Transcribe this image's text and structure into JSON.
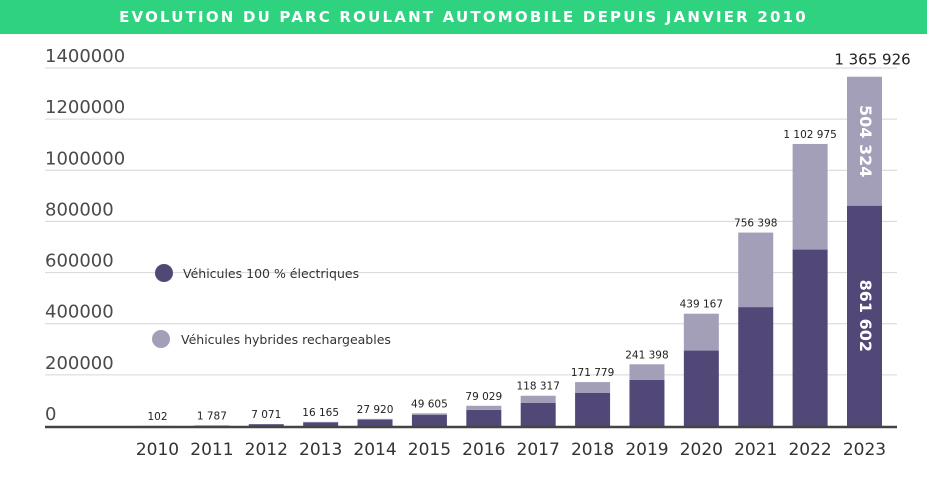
{
  "chart_data": {
    "type": "bar",
    "title": "EVOLUTION DU PARC ROULANT AUTOMOBILE DEPUIS JANVIER 2010",
    "categories": [
      "2010",
      "2011",
      "2012",
      "2013",
      "2014",
      "2015",
      "2016",
      "2017",
      "2018",
      "2019",
      "2020",
      "2021",
      "2022",
      "2023"
    ],
    "series": [
      {
        "name": "Véhicules 100 % électriques",
        "color": "#524878",
        "values": [
          102,
          1787,
          7071,
          14000,
          25000,
          44000,
          63000,
          90000,
          130000,
          180000,
          295000,
          465000,
          690000,
          861602
        ]
      },
      {
        "name": "Véhicules hybrides rechargeables",
        "color": "#a39fb8",
        "values": [
          0,
          0,
          0,
          2165,
          2920,
          5605,
          16029,
          28317,
          41779,
          61398,
          144167,
          291398,
          412975,
          504324
        ]
      }
    ],
    "totals": [
      "102",
      "1 787",
      "7 071",
      "16 165",
      "27 920",
      "49 605",
      "79 029",
      "118 317",
      "171 779",
      "241 398",
      "439 167",
      "756 398",
      "1 102 975",
      "1 365 926"
    ],
    "bar_labels": {
      "bev_2023": "861 602",
      "phev_2023": "504 324"
    },
    "yticks": [
      "0",
      "200000",
      "400000",
      "600000",
      "800000",
      "1000000",
      "1200000",
      "1400000"
    ],
    "ylim": [
      0,
      1400000
    ],
    "grid": true,
    "legend_position": "left"
  }
}
